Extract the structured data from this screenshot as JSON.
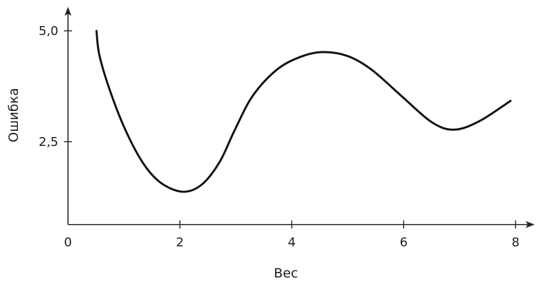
{
  "chart_data": {
    "type": "line",
    "title": "",
    "xlabel": "Вес",
    "ylabel": "Ошибка",
    "xlim": [
      0,
      8.34
    ],
    "ylim": [
      0.63,
      5.54
    ],
    "x_ticks": [
      0,
      2,
      4,
      6,
      8
    ],
    "x_tick_labels": [
      "0",
      "2",
      "4",
      "6",
      "8"
    ],
    "y_ticks": [
      2.5,
      5.0
    ],
    "y_tick_labels": [
      "2,5",
      "5,0"
    ],
    "grid": false,
    "line_color": "#111111",
    "series": [
      {
        "x": [
          0.51,
          0.56,
          0.74,
          1.01,
          1.33,
          1.65,
          2.05,
          2.39,
          2.71,
          2.98,
          3.3,
          3.73,
          4.15,
          4.55,
          5.0,
          5.43,
          5.96,
          6.5,
          6.9,
          7.35,
          7.91
        ],
        "y": [
          5.0,
          4.46,
          3.69,
          2.81,
          2.04,
          1.58,
          1.37,
          1.53,
          2.04,
          2.76,
          3.53,
          4.12,
          4.41,
          4.52,
          4.43,
          4.12,
          3.53,
          2.94,
          2.77,
          2.96,
          3.42
        ]
      }
    ]
  }
}
